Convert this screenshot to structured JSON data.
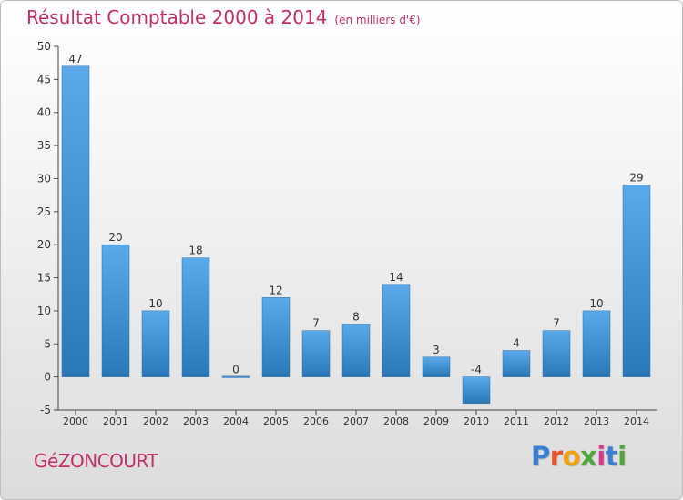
{
  "header": {
    "title": "Résultat Comptable 2000 à 2014",
    "subtitle": "(en milliers d'€)"
  },
  "footer": {
    "commune": "GéZONCOURT",
    "brand": {
      "letters": [
        "P",
        "r",
        "o",
        "x",
        "i",
        "t",
        "i"
      ],
      "colors": [
        "#3a7fd0",
        "#e8532a",
        "#f2a20c",
        "#4fa63a",
        "#d63a8c",
        "#3a7fd0",
        "#4fa63a"
      ]
    }
  },
  "colors": {
    "bar_top": "#5ba9e8",
    "bar_bottom": "#2a78b8",
    "axis": "#444444",
    "text": "#333333"
  },
  "chart_data": {
    "type": "bar",
    "title": "Résultat Comptable 2000 à 2014",
    "subtitle": "(en milliers d'€)",
    "xlabel": "",
    "ylabel": "",
    "categories": [
      "2000",
      "2001",
      "2002",
      "2003",
      "2004",
      "2005",
      "2006",
      "2007",
      "2008",
      "2009",
      "2010",
      "2011",
      "2012",
      "2013",
      "2014"
    ],
    "values": [
      47,
      20,
      10,
      18,
      0,
      12,
      7,
      8,
      14,
      3,
      -4,
      4,
      7,
      10,
      29
    ],
    "data_labels": [
      "47",
      "20",
      "10",
      "18",
      "0",
      "12",
      "7",
      "8",
      "14",
      "3",
      "-4",
      "4",
      "7",
      "10",
      "29"
    ],
    "ylim": [
      -5,
      50
    ],
    "yticks": [
      -5,
      0,
      5,
      10,
      15,
      20,
      25,
      30,
      35,
      40,
      45,
      50
    ],
    "grid": false,
    "legend": "none"
  }
}
